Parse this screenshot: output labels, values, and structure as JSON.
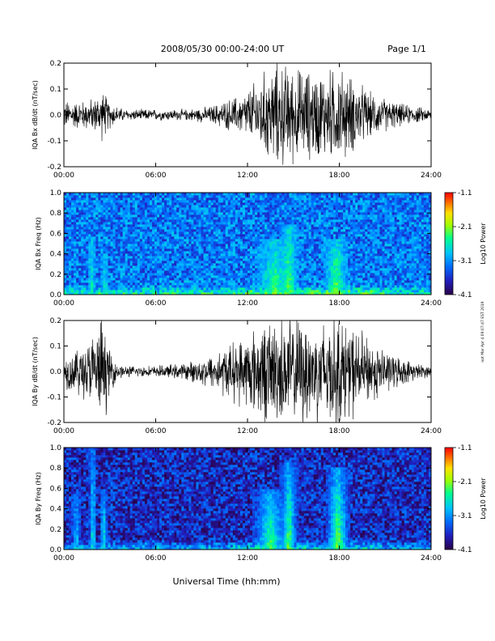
{
  "header": {
    "date_range": "2008/05/30  00:00-24:00 UT",
    "page": "Page 1/1"
  },
  "side_note": "not Mar Apr 4 09:07:47 EST 2019",
  "xlabel": "Universal Time (hh:mm)",
  "colors": {
    "trace": "#000000",
    "colormap": [
      "#2a0048",
      "#2020c0",
      "#0070ff",
      "#00c0ff",
      "#00ff90",
      "#a0ff00",
      "#ffe000",
      "#ff7000",
      "#ff0000"
    ]
  },
  "chart_data": [
    {
      "type": "line",
      "name": "bx-waveform",
      "ylabel": "IQA Bx dB/dt (nT/sec)",
      "x_unit": "hours UT",
      "xlim": [
        0,
        24
      ],
      "ylim": [
        -0.2,
        0.2
      ],
      "xticks": [
        "00:00",
        "06:00",
        "12:00",
        "18:00",
        "24:00"
      ],
      "yticks": [
        "-0.2",
        "-0.1",
        "0.0",
        "0.1",
        "0.2"
      ],
      "envelope": {
        "x": [
          0,
          1,
          2,
          2.5,
          3,
          3.5,
          4,
          6,
          8,
          9.5,
          10.5,
          11.5,
          12,
          13,
          14,
          15,
          16,
          17,
          18,
          19,
          20,
          21,
          22,
          23,
          24
        ],
        "amplitude": [
          0.05,
          0.05,
          0.06,
          0.09,
          0.05,
          0.03,
          0.02,
          0.02,
          0.02,
          0.03,
          0.05,
          0.07,
          0.09,
          0.15,
          0.19,
          0.17,
          0.16,
          0.16,
          0.17,
          0.13,
          0.08,
          0.06,
          0.04,
          0.03,
          0.02
        ]
      }
    },
    {
      "type": "heatmap",
      "name": "bx-spectrogram",
      "ylabel": "IQA Bx Freq (Hz)",
      "colorbar_label": "Log10 Power",
      "colorbar_ticks": [
        "-1.1",
        "-2.1",
        "-3.1",
        "-4.1"
      ],
      "zlim": [
        -4.1,
        -1.1
      ],
      "xlim": [
        0,
        24
      ],
      "ylim": [
        0,
        1.0
      ],
      "xticks": [
        "00:00",
        "06:00",
        "12:00",
        "18:00",
        "24:00"
      ],
      "yticks": [
        "0.0",
        "0.2",
        "0.4",
        "0.6",
        "0.8",
        "1.0"
      ],
      "background_level": -3.3,
      "bursts": [
        {
          "t": 1.8,
          "width": 0.25,
          "top_hz": 0.55,
          "level": -2.6
        },
        {
          "t": 2.7,
          "width": 0.25,
          "top_hz": 0.4,
          "level": -2.7
        },
        {
          "t": 13.8,
          "width": 1.2,
          "top_hz": 0.55,
          "level": -2.4
        },
        {
          "t": 14.7,
          "width": 0.6,
          "top_hz": 0.7,
          "level": -2.3
        },
        {
          "t": 17.8,
          "width": 0.8,
          "top_hz": 0.55,
          "level": -2.3
        }
      ]
    },
    {
      "type": "line",
      "name": "by-waveform",
      "ylabel": "IQA By dB/dt (nT/sec)",
      "x_unit": "hours UT",
      "xlim": [
        0,
        24
      ],
      "ylim": [
        -0.2,
        0.2
      ],
      "xticks": [
        "00:00",
        "06:00",
        "12:00",
        "18:00",
        "24:00"
      ],
      "yticks": [
        "-0.2",
        "-0.1",
        "0.0",
        "0.1",
        "0.2"
      ],
      "envelope": {
        "x": [
          0,
          1,
          2,
          2.5,
          3,
          3.5,
          4,
          6,
          8,
          9.5,
          10.5,
          11.5,
          12,
          13,
          14,
          15,
          16,
          17,
          18,
          19,
          20,
          21,
          22,
          23,
          24
        ],
        "amplitude": [
          0.06,
          0.09,
          0.14,
          0.2,
          0.08,
          0.03,
          0.02,
          0.02,
          0.03,
          0.06,
          0.09,
          0.12,
          0.14,
          0.18,
          0.2,
          0.2,
          0.2,
          0.2,
          0.2,
          0.16,
          0.12,
          0.08,
          0.05,
          0.03,
          0.02
        ]
      }
    },
    {
      "type": "heatmap",
      "name": "by-spectrogram",
      "ylabel": "IQA By Freq (Hz)",
      "colorbar_label": "Log10 Power",
      "colorbar_ticks": [
        "-1.1",
        "-2.1",
        "-3.1",
        "-4.1"
      ],
      "zlim": [
        -4.1,
        -1.1
      ],
      "xlim": [
        0,
        24
      ],
      "ylim": [
        0,
        1.0
      ],
      "xticks": [
        "00:00",
        "06:00",
        "12:00",
        "18:00",
        "24:00"
      ],
      "yticks": [
        "0.0",
        "0.2",
        "0.4",
        "0.6",
        "0.8",
        "1.0"
      ],
      "background_level": -3.7,
      "bursts": [
        {
          "t": 0.8,
          "width": 0.3,
          "top_hz": 0.55,
          "level": -2.8
        },
        {
          "t": 1.9,
          "width": 0.25,
          "top_hz": 1.0,
          "level": -2.6
        },
        {
          "t": 2.6,
          "width": 0.25,
          "top_hz": 0.6,
          "level": -2.6
        },
        {
          "t": 13.5,
          "width": 1.2,
          "top_hz": 0.6,
          "level": -2.4
        },
        {
          "t": 14.7,
          "width": 0.6,
          "top_hz": 0.85,
          "level": -2.3
        },
        {
          "t": 17.9,
          "width": 0.8,
          "top_hz": 0.8,
          "level": -2.2
        }
      ]
    }
  ]
}
